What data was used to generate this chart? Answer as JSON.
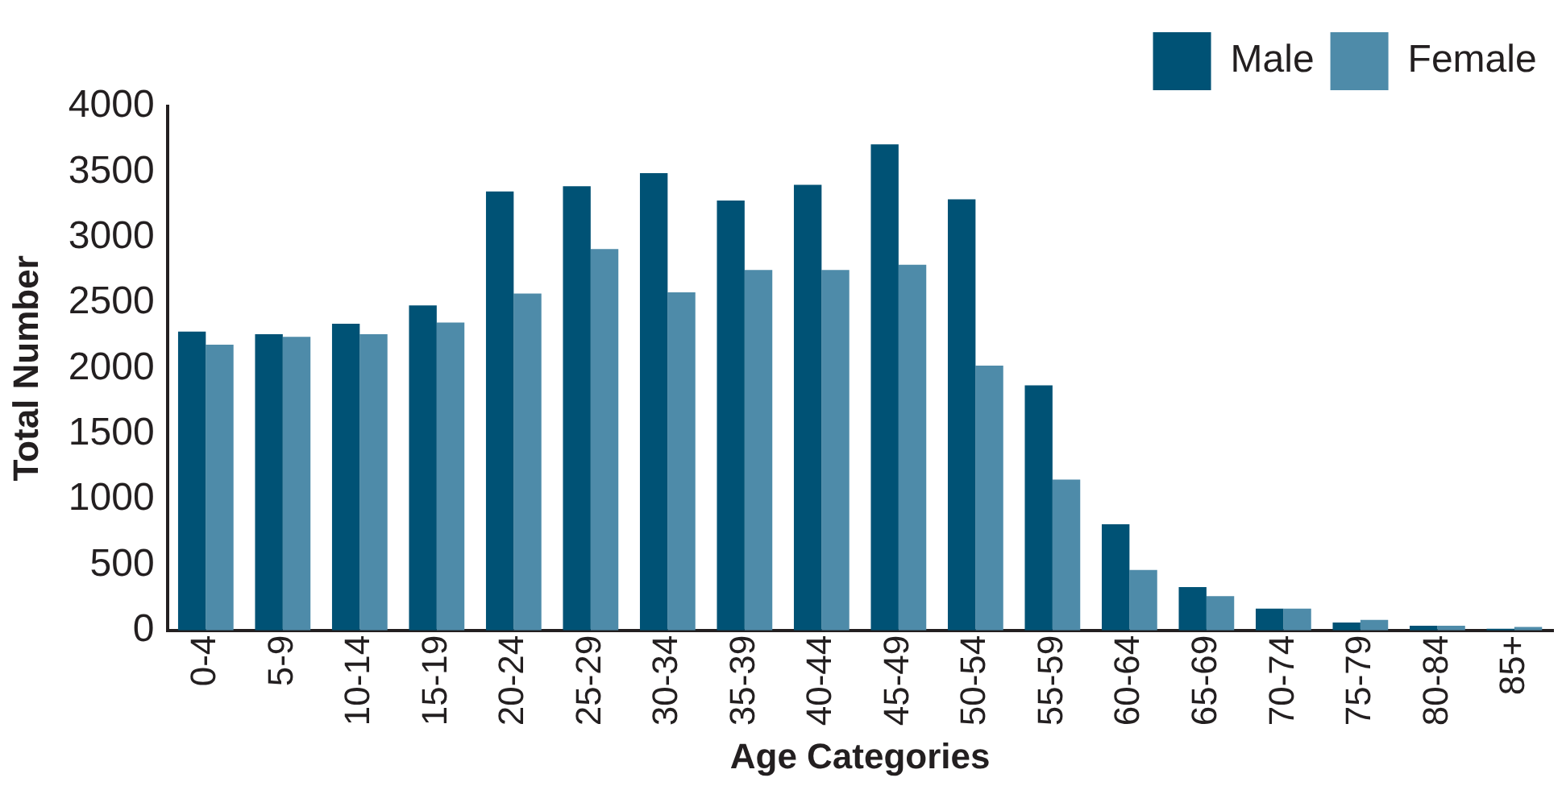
{
  "chart_data": {
    "type": "bar",
    "xlabel": "Age Categories",
    "ylabel": "Total Number",
    "categories": [
      "0-4",
      "5-9",
      "10-14",
      "15-19",
      "20-24",
      "25-29",
      "30-34",
      "35-39",
      "40-44",
      "45-49",
      "50-54",
      "55-59",
      "60-64",
      "65-69",
      "70-74",
      "75-79",
      "80-84",
      "85+"
    ],
    "series": [
      {
        "name": "Male",
        "color": "#005275",
        "values": [
          2280,
          2260,
          2340,
          2480,
          3350,
          3390,
          3490,
          3280,
          3400,
          3710,
          3290,
          1870,
          810,
          330,
          165,
          60,
          35,
          12
        ]
      },
      {
        "name": "Female",
        "color": "#4e8ba9",
        "values": [
          2180,
          2240,
          2260,
          2350,
          2570,
          2910,
          2580,
          2750,
          2750,
          2790,
          2020,
          1150,
          460,
          260,
          165,
          80,
          35,
          25
        ]
      }
    ],
    "ylim": [
      0,
      4000
    ],
    "yticks": [
      0,
      500,
      1000,
      1500,
      2000,
      2500,
      3000,
      3500,
      4000
    ],
    "grid": false,
    "legend": "top right"
  }
}
